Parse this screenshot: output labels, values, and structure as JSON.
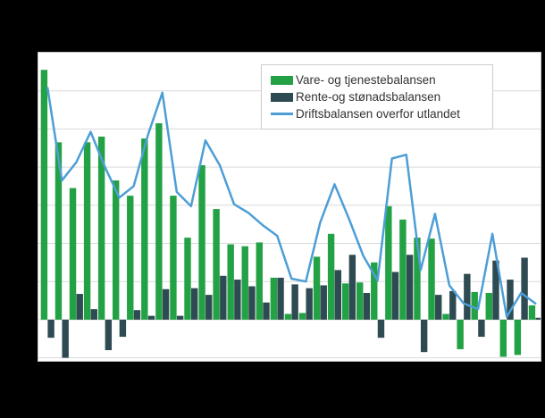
{
  "legend": {
    "items": [
      {
        "label": "Vare- og tjenestebalansen",
        "swatch": "green-bar-swatch",
        "color": "#23a145"
      },
      {
        "label": "Rente-og stønadsbalansen",
        "swatch": "dark-bar-swatch",
        "color": "#2e4a52"
      },
      {
        "label": "Driftsbalansen overfor utlandet",
        "swatch": "blue-line-swatch",
        "color": "#4d9ed6"
      }
    ]
  },
  "colors": {
    "background": "#000000",
    "panel": "#ffffff",
    "panel_border": "#c8c8c8",
    "gridline": "#d9d9d9",
    "green_bars": "#23a145",
    "dark_bars": "#2e4a52",
    "blue_line": "#4d9ed6"
  },
  "chart_data": {
    "type": "combo",
    "x_count": 35,
    "x_labels_visible": false,
    "y_labels_visible": false,
    "grid": true,
    "legend_position": "top-right",
    "y_axis": {
      "min": -21.6,
      "max": 140,
      "gridline_step": 20
    },
    "series": [
      {
        "name": "Vare- og tjenestebalansen",
        "type": "bar",
        "color": "#23a145",
        "values": [
          131,
          93,
          69,
          93,
          96,
          73,
          65,
          95,
          103,
          65,
          43,
          81,
          58,
          39.5,
          38.5,
          40.5,
          22,
          3,
          3.5,
          33,
          45,
          19,
          19.5,
          30,
          59.5,
          52.5,
          43,
          42.5,
          3,
          -15.5,
          14.5,
          14,
          -19.5,
          -18.5,
          7.5
        ]
      },
      {
        "name": "Rente-og stønadsbalansen",
        "type": "bar",
        "color": "#2e4a52",
        "values": [
          -9.5,
          -20,
          13.5,
          5.5,
          -16,
          -9,
          5,
          2,
          16,
          2,
          16.5,
          13,
          23,
          21,
          17.5,
          9,
          22,
          18.5,
          16.5,
          18,
          26,
          34,
          14,
          -9.5,
          25,
          34,
          -17,
          13,
          15,
          24,
          -9,
          31,
          21,
          32.5,
          1
        ]
      },
      {
        "name": "Driftsbalansen overfor utlandet",
        "type": "line",
        "color": "#4d9ed6",
        "values": [
          121.5,
          73,
          82.5,
          98.5,
          80,
          64,
          70,
          97,
          119,
          67,
          59.5,
          94,
          81,
          60.5,
          56,
          49.5,
          44,
          21.5,
          20,
          51,
          71,
          53,
          33.5,
          20.5,
          84.5,
          86.5,
          26,
          55.5,
          18,
          8.5,
          5.5,
          45,
          1.5,
          14,
          8.5
        ]
      }
    ]
  }
}
